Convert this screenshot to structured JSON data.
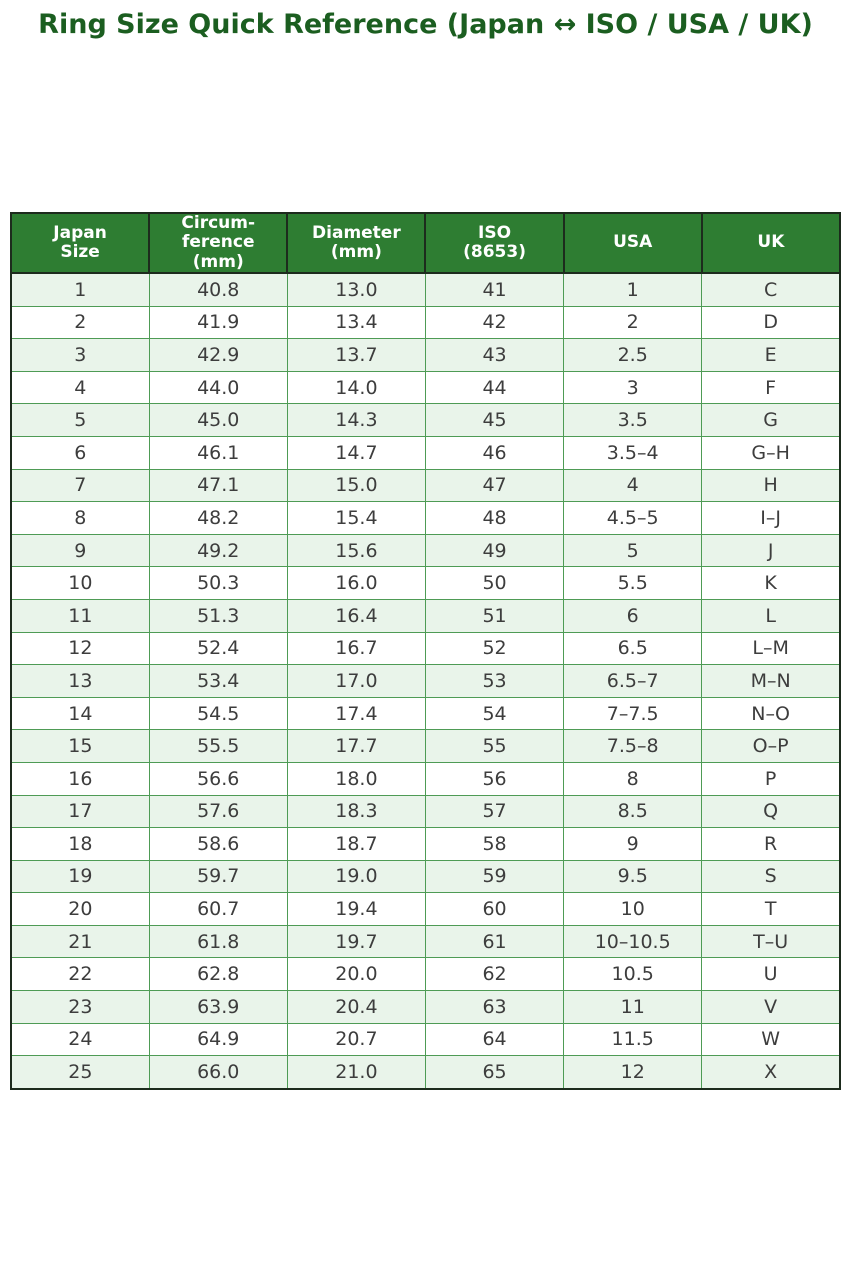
{
  "colors": {
    "title_text": "#1b5e20",
    "header_bg": "#2e7d32",
    "header_text": "#ffffff",
    "row_stripe": "#e9f4ea",
    "row_plain": "#ffffff",
    "inner_border": "#4e9b55",
    "outer_border": "#1d2b1d",
    "body_text": "#3d3d3d"
  },
  "chart_data": {
    "type": "table",
    "title": "Ring Size Quick Reference (Japan ↔ ISO / USA / UK)",
    "columns": [
      "Japan\nSize",
      "Circum-\nference\n(mm)",
      "Diameter\n(mm)",
      "ISO\n(8653)",
      "USA",
      "UK"
    ],
    "rows": [
      [
        "1",
        "40.8",
        "13.0",
        "41",
        "1",
        "C"
      ],
      [
        "2",
        "41.9",
        "13.4",
        "42",
        "2",
        "D"
      ],
      [
        "3",
        "42.9",
        "13.7",
        "43",
        "2.5",
        "E"
      ],
      [
        "4",
        "44.0",
        "14.0",
        "44",
        "3",
        "F"
      ],
      [
        "5",
        "45.0",
        "14.3",
        "45",
        "3.5",
        "G"
      ],
      [
        "6",
        "46.1",
        "14.7",
        "46",
        "3.5–4",
        "G–H"
      ],
      [
        "7",
        "47.1",
        "15.0",
        "47",
        "4",
        "H"
      ],
      [
        "8",
        "48.2",
        "15.4",
        "48",
        "4.5–5",
        "I–J"
      ],
      [
        "9",
        "49.2",
        "15.6",
        "49",
        "5",
        "J"
      ],
      [
        "10",
        "50.3",
        "16.0",
        "50",
        "5.5",
        "K"
      ],
      [
        "11",
        "51.3",
        "16.4",
        "51",
        "6",
        "L"
      ],
      [
        "12",
        "52.4",
        "16.7",
        "52",
        "6.5",
        "L–M"
      ],
      [
        "13",
        "53.4",
        "17.0",
        "53",
        "6.5–7",
        "M–N"
      ],
      [
        "14",
        "54.5",
        "17.4",
        "54",
        "7–7.5",
        "N–O"
      ],
      [
        "15",
        "55.5",
        "17.7",
        "55",
        "7.5–8",
        "O–P"
      ],
      [
        "16",
        "56.6",
        "18.0",
        "56",
        "8",
        "P"
      ],
      [
        "17",
        "57.6",
        "18.3",
        "57",
        "8.5",
        "Q"
      ],
      [
        "18",
        "58.6",
        "18.7",
        "58",
        "9",
        "R"
      ],
      [
        "19",
        "59.7",
        "19.0",
        "59",
        "9.5",
        "S"
      ],
      [
        "20",
        "60.7",
        "19.4",
        "60",
        "10",
        "T"
      ],
      [
        "21",
        "61.8",
        "19.7",
        "61",
        "10–10.5",
        "T–U"
      ],
      [
        "22",
        "62.8",
        "20.0",
        "62",
        "10.5",
        "U"
      ],
      [
        "23",
        "63.9",
        "20.4",
        "63",
        "11",
        "V"
      ],
      [
        "24",
        "64.9",
        "20.7",
        "64",
        "11.5",
        "W"
      ],
      [
        "25",
        "66.0",
        "21.0",
        "65",
        "12",
        "X"
      ]
    ]
  }
}
